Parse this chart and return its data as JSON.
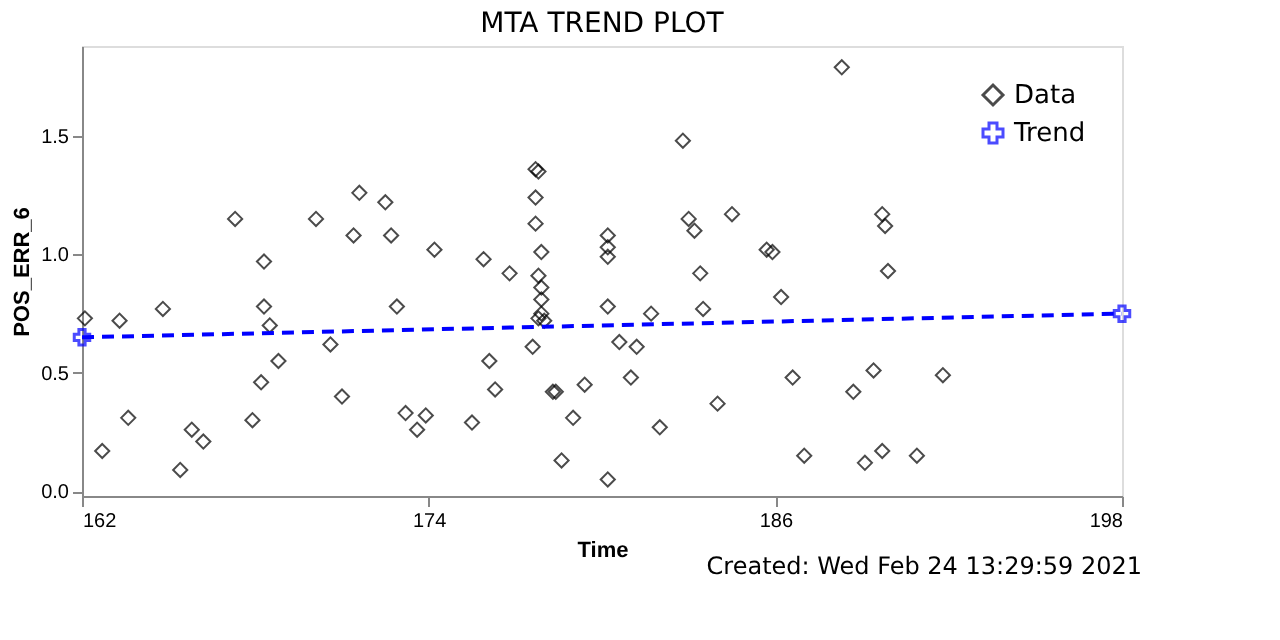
{
  "chart_data": {
    "type": "scatter",
    "title": "MTA TREND PLOT",
    "xlabel": "Time",
    "ylabel": "POS_ERR_6",
    "xlim": [
      162,
      198
    ],
    "xticks": [
      162,
      174,
      186,
      198
    ],
    "ylim": [
      -0.02,
      1.88
    ],
    "yticks": [
      {
        "value": 0,
        "label": "0.0"
      },
      {
        "value": 0.5,
        "label": "0.5"
      },
      {
        "value": 1,
        "label": "1.0"
      },
      {
        "value": 1.5,
        "label": "1.5"
      }
    ],
    "grid": false,
    "legend": "top right",
    "annotations": [
      "Created: Wed Feb 24 13:29:59 2021"
    ],
    "series": [
      {
        "name": "Data",
        "marker": "diamond",
        "color": "#000000",
        "x": [
          162.1,
          162.7,
          163.3,
          163.6,
          164.8,
          165.4,
          165.8,
          166.2,
          167.3,
          167.9,
          168.3,
          168.3,
          168.5,
          168.2,
          168.8,
          170.1,
          170.6,
          171.0,
          171.4,
          171.6,
          172.5,
          172.7,
          172.9,
          173.2,
          173.6,
          173.9,
          174.2,
          175.5,
          175.9,
          176.1,
          176.3,
          176.8,
          177.6,
          177.7,
          177.8,
          177.7,
          177.7,
          177.9,
          177.8,
          177.9,
          177.9,
          177.9,
          178.0,
          177.8,
          178.3,
          178.4,
          178.6,
          179.0,
          179.4,
          180.2,
          180.2,
          180.2,
          180.2,
          180.2,
          180.6,
          181.2,
          181.0,
          181.7,
          182.0,
          182.8,
          183.0,
          183.2,
          183.4,
          183.5,
          184.0,
          184.5,
          185.7,
          185.9,
          186.2,
          186.6,
          187.0,
          188.3,
          188.7,
          189.1,
          189.4,
          189.7,
          189.8,
          189.7,
          189.9,
          190.9,
          191.8
        ],
        "values": [
          0.73,
          0.17,
          0.72,
          0.31,
          0.77,
          0.09,
          0.26,
          0.21,
          1.15,
          0.3,
          0.97,
          0.78,
          0.7,
          0.46,
          0.55,
          1.15,
          0.62,
          0.4,
          1.08,
          1.26,
          1.22,
          1.08,
          0.78,
          0.33,
          0.26,
          0.32,
          1.02,
          0.29,
          0.98,
          0.55,
          0.43,
          0.92,
          0.61,
          1.36,
          1.35,
          1.24,
          1.13,
          1.01,
          0.91,
          0.86,
          0.81,
          0.75,
          0.72,
          0.73,
          0.42,
          0.42,
          0.13,
          0.31,
          0.45,
          1.08,
          1.03,
          0.99,
          0.78,
          0.05,
          0.63,
          0.61,
          0.48,
          0.75,
          0.27,
          1.48,
          1.15,
          1.1,
          0.92,
          0.77,
          0.37,
          1.17,
          1.02,
          1.01,
          0.82,
          0.48,
          0.15,
          1.79,
          0.42,
          0.12,
          0.51,
          1.17,
          1.12,
          0.17,
          0.93,
          0.15,
          0.49
        ]
      },
      {
        "name": "Trend",
        "type": "line",
        "marker": "cross",
        "line_style": "dashed",
        "color": "#0000ff",
        "x": [
          162,
          198
        ],
        "values": [
          0.65,
          0.75
        ]
      }
    ]
  }
}
